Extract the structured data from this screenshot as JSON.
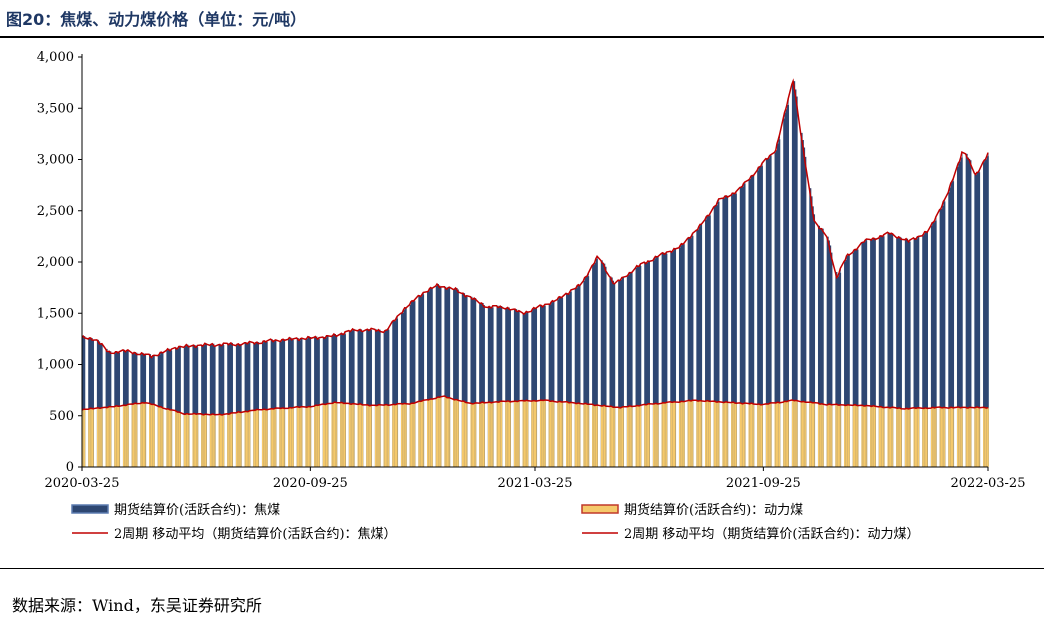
{
  "title": "图20：焦煤、动力煤价格（单位：元/吨）",
  "source": "数据来源：Wind，东吴证券研究所",
  "colors": {
    "coking_bar": "#2e4772",
    "thermal_bar": "#f5c96b",
    "ma_line": "#c00000",
    "thermal_legend_border": "#c0392b"
  },
  "chart_data": {
    "type": "bar",
    "y_ticks": [
      "0",
      "500",
      "1,000",
      "1,500",
      "2,000",
      "2,500",
      "3,000",
      "3,500",
      "4,000"
    ],
    "ylim": [
      0,
      4000
    ],
    "x_ticks": [
      "2020-03-25",
      "2020-09-25",
      "2021-03-25",
      "2021-09-25",
      "2022-03-25"
    ],
    "x_range": [
      "2020-03-25",
      "2022-03-25"
    ],
    "grid": false,
    "legend_position": "bottom",
    "series": [
      {
        "name": "期货结算价(活跃合约)：焦煤",
        "kind": "bar"
      },
      {
        "name": "期货结算价(活跃合约)：动力煤",
        "kind": "bar"
      },
      {
        "name": "2周期  移动平均（期货结算价(活跃合约)：焦煤）",
        "kind": "line"
      },
      {
        "name": "2周期  移动平均（期货结算价(活跃合约)：动力煤）",
        "kind": "line"
      }
    ],
    "coking_keypoints": [
      [
        "2020-03-25",
        1260
      ],
      [
        "2020-04-05",
        1250
      ],
      [
        "2020-04-15",
        1120
      ],
      [
        "2020-05-01",
        1130
      ],
      [
        "2020-05-20",
        1080
      ],
      [
        "2020-06-10",
        1170
      ],
      [
        "2020-07-01",
        1190
      ],
      [
        "2020-08-01",
        1200
      ],
      [
        "2020-09-01",
        1240
      ],
      [
        "2020-10-10",
        1270
      ],
      [
        "2020-11-01",
        1340
      ],
      [
        "2020-11-25",
        1330
      ],
      [
        "2020-12-10",
        1550
      ],
      [
        "2020-12-25",
        1700
      ],
      [
        "2021-01-05",
        1770
      ],
      [
        "2021-01-20",
        1730
      ],
      [
        "2021-02-15",
        1560
      ],
      [
        "2021-03-01",
        1560
      ],
      [
        "2021-03-15",
        1500
      ],
      [
        "2021-04-10",
        1620
      ],
      [
        "2021-05-01",
        1780
      ],
      [
        "2021-05-15",
        2060
      ],
      [
        "2021-05-28",
        1780
      ],
      [
        "2021-06-15",
        1950
      ],
      [
        "2021-07-01",
        2050
      ],
      [
        "2021-07-20",
        2150
      ],
      [
        "2021-08-05",
        2350
      ],
      [
        "2021-08-20",
        2600
      ],
      [
        "2021-09-05",
        2700
      ],
      [
        "2021-09-20",
        2900
      ],
      [
        "2021-10-05",
        3100
      ],
      [
        "2021-10-19",
        3780
      ],
      [
        "2021-10-27",
        3100
      ],
      [
        "2021-11-05",
        2400
      ],
      [
        "2021-11-15",
        2250
      ],
      [
        "2021-11-23",
        1850
      ],
      [
        "2021-12-01",
        2050
      ],
      [
        "2021-12-15",
        2200
      ],
      [
        "2022-01-05",
        2280
      ],
      [
        "2022-01-20",
        2200
      ],
      [
        "2022-02-05",
        2300
      ],
      [
        "2022-02-20",
        2650
      ],
      [
        "2022-03-05",
        3100
      ],
      [
        "2022-03-15",
        2850
      ],
      [
        "2022-03-25",
        3050
      ]
    ],
    "thermal_keypoints": [
      [
        "2020-03-25",
        560
      ],
      [
        "2020-04-20",
        590
      ],
      [
        "2020-05-15",
        630
      ],
      [
        "2020-06-15",
        520
      ],
      [
        "2020-07-15",
        510
      ],
      [
        "2020-08-15",
        560
      ],
      [
        "2020-09-25",
        590
      ],
      [
        "2020-10-15",
        630
      ],
      [
        "2020-11-15",
        600
      ],
      [
        "2020-12-15",
        620
      ],
      [
        "2021-01-10",
        690
      ],
      [
        "2021-02-01",
        620
      ],
      [
        "2021-03-01",
        640
      ],
      [
        "2021-04-01",
        650
      ],
      [
        "2021-05-01",
        620
      ],
      [
        "2021-06-01",
        580
      ],
      [
        "2021-07-01",
        620
      ],
      [
        "2021-08-01",
        650
      ],
      [
        "2021-09-25",
        610
      ],
      [
        "2021-10-19",
        650
      ],
      [
        "2021-11-15",
        610
      ],
      [
        "2021-12-15",
        600
      ],
      [
        "2022-01-15",
        570
      ],
      [
        "2022-02-15",
        580
      ],
      [
        "2022-03-25",
        580
      ]
    ]
  }
}
